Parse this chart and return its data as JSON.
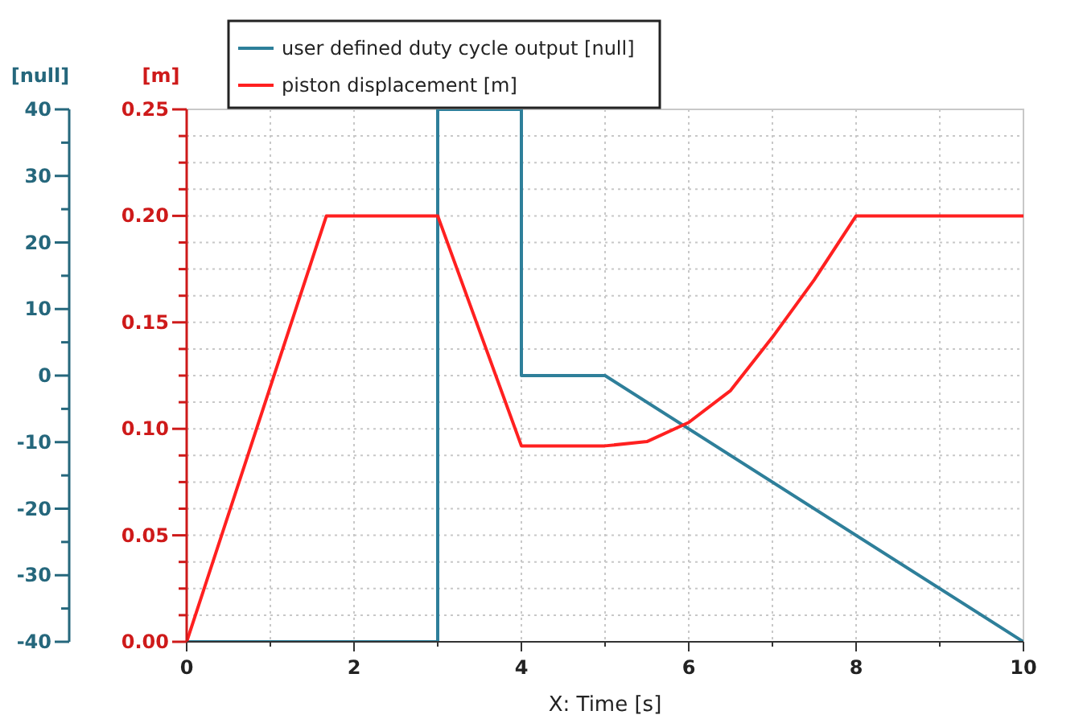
{
  "chart_data": {
    "type": "line",
    "xlabel": "X: Time [s]",
    "ylabel": "[null]",
    "y2label": "[m]",
    "xlim": [
      0,
      10
    ],
    "xticks": [
      0,
      {
        "value": 1,
        "label": null
      },
      2,
      {
        "value": 3,
        "label": null
      },
      4,
      {
        "value": 5,
        "label": null
      },
      6,
      {
        "value": 7,
        "label": null
      },
      8,
      {
        "value": 9,
        "label": null
      },
      10
    ],
    "ylim": [
      -40,
      40
    ],
    "yticks": [
      -40,
      -30,
      -20,
      -10,
      0,
      10,
      20,
      30,
      40
    ],
    "y2lim": [
      0,
      0.25
    ],
    "y2ticks": [
      {
        "value": 0,
        "label": "0.00"
      },
      {
        "value": 0.0125,
        "label": null
      },
      {
        "value": 0.025,
        "label": null
      },
      {
        "value": 0.0375,
        "label": null
      },
      {
        "value": 0.05,
        "label": "0.05"
      },
      {
        "value": 0.0625,
        "label": null
      },
      {
        "value": 0.075,
        "label": null
      },
      {
        "value": 0.0875,
        "label": null
      },
      {
        "value": 0.1,
        "label": "0.10"
      },
      {
        "value": 0.1125,
        "label": null
      },
      {
        "value": 0.125,
        "label": null
      },
      {
        "value": 0.1375,
        "label": null
      },
      {
        "value": 0.15,
        "label": "0.15"
      },
      {
        "value": 0.1625,
        "label": null
      },
      {
        "value": 0.175,
        "label": null
      },
      {
        "value": 0.1875,
        "label": null
      },
      {
        "value": 0.2,
        "label": "0.20"
      },
      {
        "value": 0.2125,
        "label": null
      },
      {
        "value": 0.225,
        "label": null
      },
      {
        "value": 0.2375,
        "label": null
      },
      {
        "value": 0.25,
        "label": "0.25"
      }
    ],
    "grid": true,
    "legend": "top",
    "line_style": "solid",
    "marker": "none",
    "series": [
      {
        "name": "user defined duty cycle output [null]",
        "color": "#2e7f9a",
        "x": [
          0,
          3,
          3,
          4,
          4,
          5,
          10
        ],
        "values": [
          -40,
          -40,
          40,
          40,
          0,
          0,
          -40
        ]
      },
      {
        "name": "piston displacement [m]",
        "color": "#ff2020",
        "axis": "y2",
        "x": [
          0,
          1.67,
          3,
          4,
          5,
          5.5,
          6,
          6.5,
          7,
          7.5,
          8,
          10
        ],
        "values": [
          0,
          0.2,
          0.2,
          0.092,
          0.092,
          0.094,
          0.103,
          0.118,
          0.143,
          0.17,
          0.2,
          0.2
        ]
      }
    ]
  }
}
